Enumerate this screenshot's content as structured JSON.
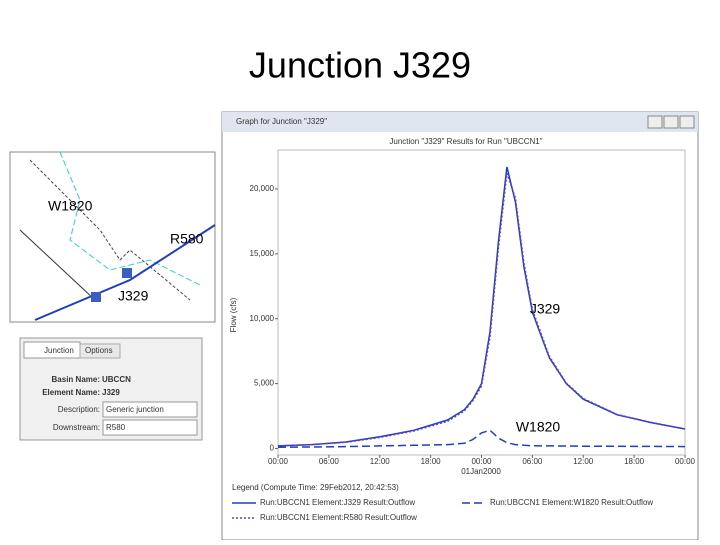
{
  "slide_title": "Junction J329",
  "map": {
    "labels": [
      "W1820",
      "R580",
      "J329"
    ]
  },
  "properties": {
    "tabs": [
      "Junction",
      "Options"
    ],
    "basin_label": "Basin Name:",
    "basin": "UBCCN",
    "element_label": "Element Name:",
    "element": "J329",
    "description_label": "Description:",
    "description": "Generic junction",
    "downstream_label": "Downstream:",
    "downstream": "R580"
  },
  "window": {
    "title": "Graph for Junction \"J329\"",
    "legend_title": "Legend (Compute Time: 29Feb2012, 20:42:53)"
  },
  "chart_data": {
    "type": "line",
    "title": "Junction \"J329\" Results for Run \"UBCCN1\"",
    "y_label": "Flow (cfs)",
    "x_label": "01Jan2000",
    "x": [
      0,
      4,
      8,
      12,
      16,
      20,
      22,
      23,
      24,
      25,
      26,
      27,
      28,
      29,
      30,
      32,
      34,
      36,
      40,
      44,
      48
    ],
    "series": [
      {
        "name": "Run:UBCCN1 Element:J329 Result:Outflow",
        "color": "#1f3fbf",
        "dash": "solid",
        "values": [
          200,
          300,
          500,
          900,
          1400,
          2200,
          3000,
          3800,
          5000,
          9000,
          16000,
          21700,
          19000,
          14000,
          10500,
          7000,
          5000,
          3800,
          2600,
          2000,
          1500
        ]
      },
      {
        "name": "Run:UBCCN1 Element:W1820 Result:Outflow",
        "color": "#1f3fbf",
        "dash": "dashed",
        "values": [
          100,
          120,
          150,
          200,
          250,
          300,
          400,
          700,
          1200,
          1400,
          800,
          450,
          300,
          250,
          220,
          200,
          190,
          180,
          170,
          160,
          150
        ]
      },
      {
        "name": "Run:UBCCN1 Element:R580 Result:Outflow",
        "color": "#6a3fbf",
        "dash": "dotted",
        "values": [
          200,
          300,
          480,
          850,
          1350,
          2100,
          2900,
          3700,
          4800,
          8600,
          15500,
          21200,
          19300,
          14300,
          10700,
          7100,
          5050,
          3850,
          2620,
          2010,
          1510
        ]
      }
    ],
    "annotations": [
      "J329",
      "W1820"
    ],
    "xlim": [
      0,
      48
    ],
    "xticks": [
      {
        "value": 0,
        "label": "00:00"
      },
      {
        "value": 6,
        "label": "06:00"
      },
      {
        "value": 12,
        "label": "12:00"
      },
      {
        "value": 18,
        "label": "18:00"
      },
      {
        "value": 24,
        "label": "00:00"
      },
      {
        "value": 30,
        "label": "06:00"
      },
      {
        "value": 36,
        "label": "12:00"
      },
      {
        "value": 42,
        "label": "18:00"
      },
      {
        "value": 48,
        "label": "00:00"
      }
    ],
    "ylim": [
      -500,
      23000
    ],
    "yticks": [
      0,
      {
        "value": 5000,
        "label": "5,000"
      },
      {
        "value": 10000,
        "label": "10,000"
      },
      {
        "value": 15000,
        "label": "15,000"
      },
      {
        "value": 20000,
        "label": "20,000"
      }
    ]
  }
}
